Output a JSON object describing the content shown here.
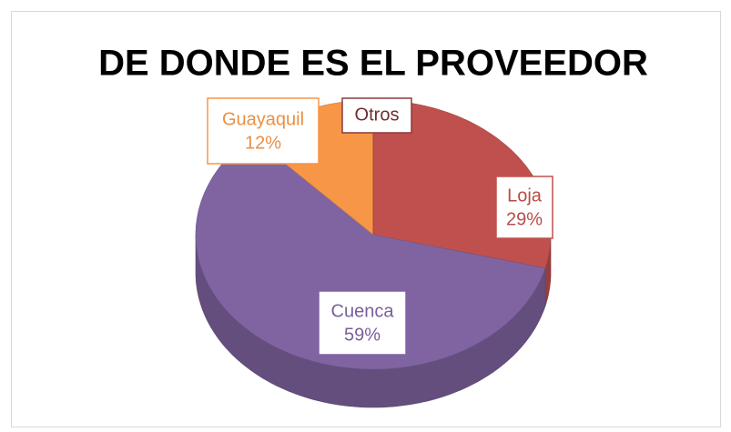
{
  "chart_data": {
    "type": "pie",
    "title": "DE DONDE ES EL PROVEEDOR",
    "categories": [
      "Loja",
      "Cuenca",
      "Guayaquil",
      "Otros"
    ],
    "values": [
      29,
      59,
      12,
      0
    ],
    "value_labels": [
      "29%",
      "59%",
      "12%",
      null
    ],
    "colors": [
      "#c0504d",
      "#8064a2",
      "#f79646",
      "#8b3a3a"
    ]
  }
}
